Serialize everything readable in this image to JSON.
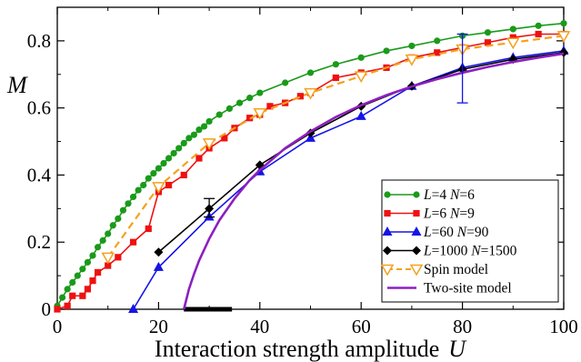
{
  "chart_data": {
    "type": "line",
    "title": "",
    "xlabel_text": "Interaction strength amplitude",
    "xlabel_var": "U",
    "ylabel": "M",
    "xlim": [
      0,
      100
    ],
    "ylim": [
      0,
      0.9
    ],
    "xticks": [
      "0",
      "20",
      "40",
      "60",
      "80",
      "100"
    ],
    "yticks": [
      "0",
      "0.2",
      "0.4",
      "0.6",
      "0.8"
    ],
    "xtick_values": [
      0,
      20,
      40,
      60,
      80,
      100
    ],
    "ytick_values": [
      0,
      0.2,
      0.4,
      0.6,
      0.8
    ],
    "grid": false,
    "legend_position": "bottom-right",
    "series": [
      {
        "name": "L=4 N=6",
        "legend_parts": [
          "L",
          "=4 ",
          "N",
          "=6"
        ],
        "color": "#1a9a1a",
        "marker": "circle",
        "dashed": false,
        "x": [
          0,
          1,
          2,
          3,
          4,
          5,
          6,
          7,
          8,
          9,
          10,
          11,
          12,
          13,
          14,
          15,
          16,
          17,
          18,
          19,
          20,
          21,
          22,
          23,
          24,
          25,
          26,
          27,
          28,
          29,
          30,
          32,
          34,
          36,
          38,
          40,
          45,
          50,
          55,
          60,
          65,
          70,
          75,
          80,
          85,
          90,
          95,
          100
        ],
        "y": [
          0.01,
          0.035,
          0.06,
          0.08,
          0.1,
          0.12,
          0.14,
          0.16,
          0.185,
          0.205,
          0.225,
          0.25,
          0.27,
          0.295,
          0.315,
          0.335,
          0.355,
          0.37,
          0.39,
          0.405,
          0.42,
          0.435,
          0.45,
          0.465,
          0.48,
          0.495,
          0.51,
          0.52,
          0.535,
          0.545,
          0.56,
          0.58,
          0.598,
          0.615,
          0.63,
          0.645,
          0.675,
          0.705,
          0.73,
          0.75,
          0.77,
          0.785,
          0.8,
          0.815,
          0.825,
          0.835,
          0.845,
          0.852
        ]
      },
      {
        "name": "L=6 N=9",
        "legend_parts": [
          "L",
          "=6 ",
          "N",
          "=9"
        ],
        "color": "#ee1111",
        "marker": "square",
        "dashed": false,
        "x": [
          0,
          2,
          3,
          5,
          6,
          7,
          8,
          10,
          12,
          15,
          18,
          20,
          22,
          25,
          28,
          30,
          33,
          35,
          38,
          40,
          42,
          45,
          48,
          50,
          55,
          60,
          65,
          70,
          75,
          80,
          85,
          90,
          95,
          100
        ],
        "y": [
          0.0,
          0.01,
          0.04,
          0.04,
          0.06,
          0.085,
          0.11,
          0.13,
          0.155,
          0.2,
          0.24,
          0.35,
          0.37,
          0.4,
          0.45,
          0.48,
          0.51,
          0.54,
          0.57,
          0.58,
          0.605,
          0.615,
          0.635,
          0.645,
          0.69,
          0.705,
          0.72,
          0.75,
          0.765,
          0.78,
          0.795,
          0.81,
          0.82,
          0.82
        ]
      },
      {
        "name": "L=60 N=90",
        "legend_parts": [
          "L",
          "=60 ",
          "N",
          "=90"
        ],
        "color": "#1414e6",
        "marker": "triangle",
        "dashed": false,
        "x": [
          15,
          20,
          30,
          40,
          50,
          60,
          70,
          80,
          90,
          100
        ],
        "y": [
          0.0,
          0.125,
          0.275,
          0.41,
          0.51,
          0.575,
          0.665,
          0.72,
          0.75,
          0.77
        ]
      },
      {
        "name": "L=1000 N=1500",
        "legend_parts": [
          "L",
          "=1000 ",
          "N",
          "=1500"
        ],
        "color": "#000000",
        "marker": "diamond",
        "dashed": false,
        "x": [
          20,
          30,
          40,
          50,
          60,
          70,
          80,
          90,
          100
        ],
        "y": [
          0.17,
          0.3,
          0.43,
          0.525,
          0.605,
          0.665,
          0.715,
          0.745,
          0.765
        ]
      },
      {
        "name": "Spin model",
        "legend_parts": [
          "Spin model"
        ],
        "color": "#f4a11d",
        "marker": "triangle-down-open",
        "dashed": true,
        "x": [
          10,
          20,
          30,
          40,
          50,
          60,
          70,
          80,
          90,
          100
        ],
        "y": [
          0.155,
          0.365,
          0.495,
          0.585,
          0.645,
          0.695,
          0.745,
          0.775,
          0.795,
          0.815
        ]
      },
      {
        "name": "Two-site model",
        "legend_parts": [
          "Two-site model"
        ],
        "color": "#8d1fc0",
        "marker": "none",
        "dashed": false,
        "x": [
          25,
          26,
          27,
          28,
          30,
          32,
          35,
          38,
          40,
          45,
          50,
          55,
          60,
          65,
          70,
          75,
          80,
          85,
          90,
          95,
          100
        ],
        "y": [
          0.0,
          0.06,
          0.105,
          0.145,
          0.21,
          0.265,
          0.33,
          0.385,
          0.415,
          0.48,
          0.53,
          0.573,
          0.608,
          0.638,
          0.664,
          0.686,
          0.705,
          0.722,
          0.737,
          0.75,
          0.762
        ]
      }
    ],
    "error_bars": [
      {
        "color": "#000000",
        "x": 30,
        "y_low": 0.275,
        "y_high": 0.33
      },
      {
        "color": "#1414e6",
        "x": 80,
        "y_low": 0.615,
        "y_high": 0.82
      }
    ],
    "baseline_segment": {
      "color": "#000000",
      "x_start": 25,
      "x_end": 34.5,
      "y": 0
    }
  }
}
